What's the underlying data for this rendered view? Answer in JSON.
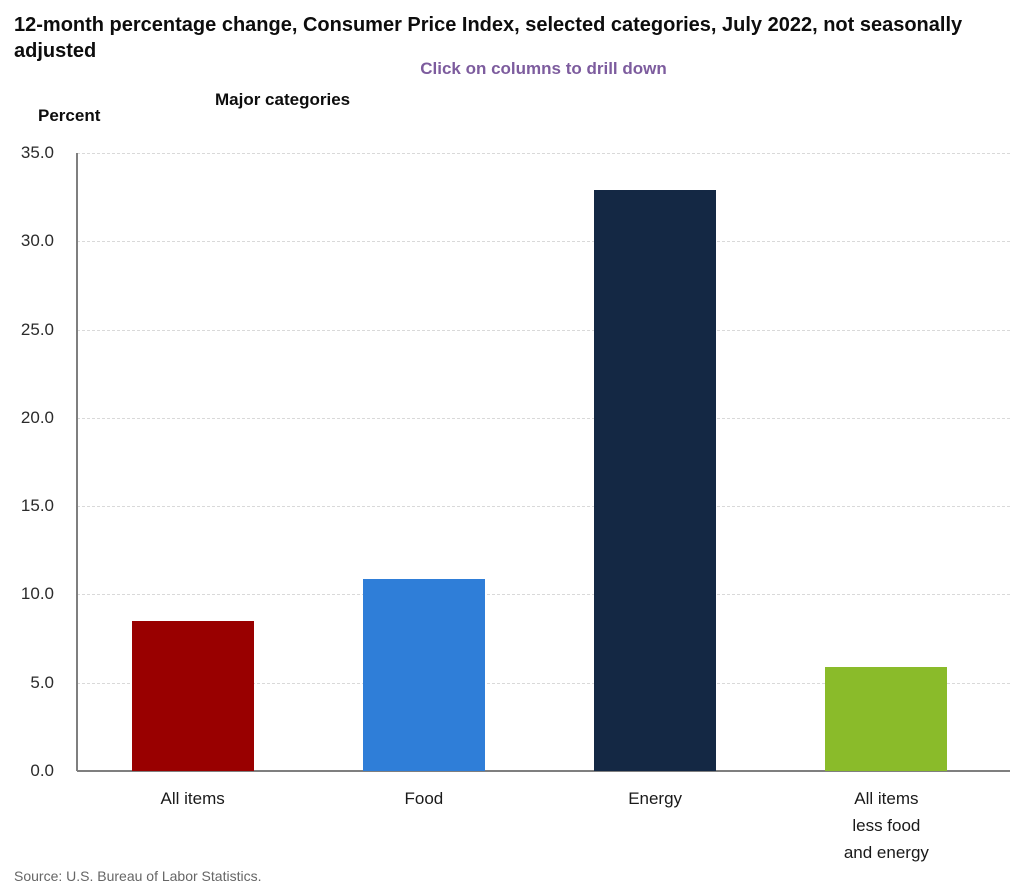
{
  "header": {
    "title": "12-month percentage change, Consumer Price Index, selected categories, July 2022, not seasonally adjusted",
    "instruction": "Click on columns to drill down",
    "instruction_color": "#7d5c9e",
    "axis_title": "Major categories",
    "y_unit_label": "Percent"
  },
  "chart_data": {
    "type": "bar",
    "title": "12-month percentage change, Consumer Price Index, selected categories, July 2022, not seasonally adjusted",
    "xlabel": "Major categories",
    "ylabel": "Percent",
    "categories": [
      "All items",
      "Food",
      "Energy",
      "All items less food and energy"
    ],
    "category_lines": [
      [
        "All items"
      ],
      [
        "Food"
      ],
      [
        "Energy"
      ],
      [
        "All items",
        "less food",
        "and energy"
      ]
    ],
    "values": [
      8.5,
      10.9,
      32.9,
      5.9
    ],
    "bar_colors": [
      "#990000",
      "#2f7ed8",
      "#142844",
      "#8abb2a"
    ],
    "ylim": [
      0,
      35
    ],
    "ytick_step": 5,
    "ytick_labels": [
      "0.0",
      "5.0",
      "10.0",
      "15.0",
      "20.0",
      "25.0",
      "30.0",
      "35.0"
    ],
    "grid": "horizontal-dashed",
    "grid_color": "#d9d9d9",
    "axis_color": "#7f7f7f",
    "legend": "none"
  },
  "footer": {
    "source": "Source: U.S. Bureau of Labor Statistics."
  }
}
